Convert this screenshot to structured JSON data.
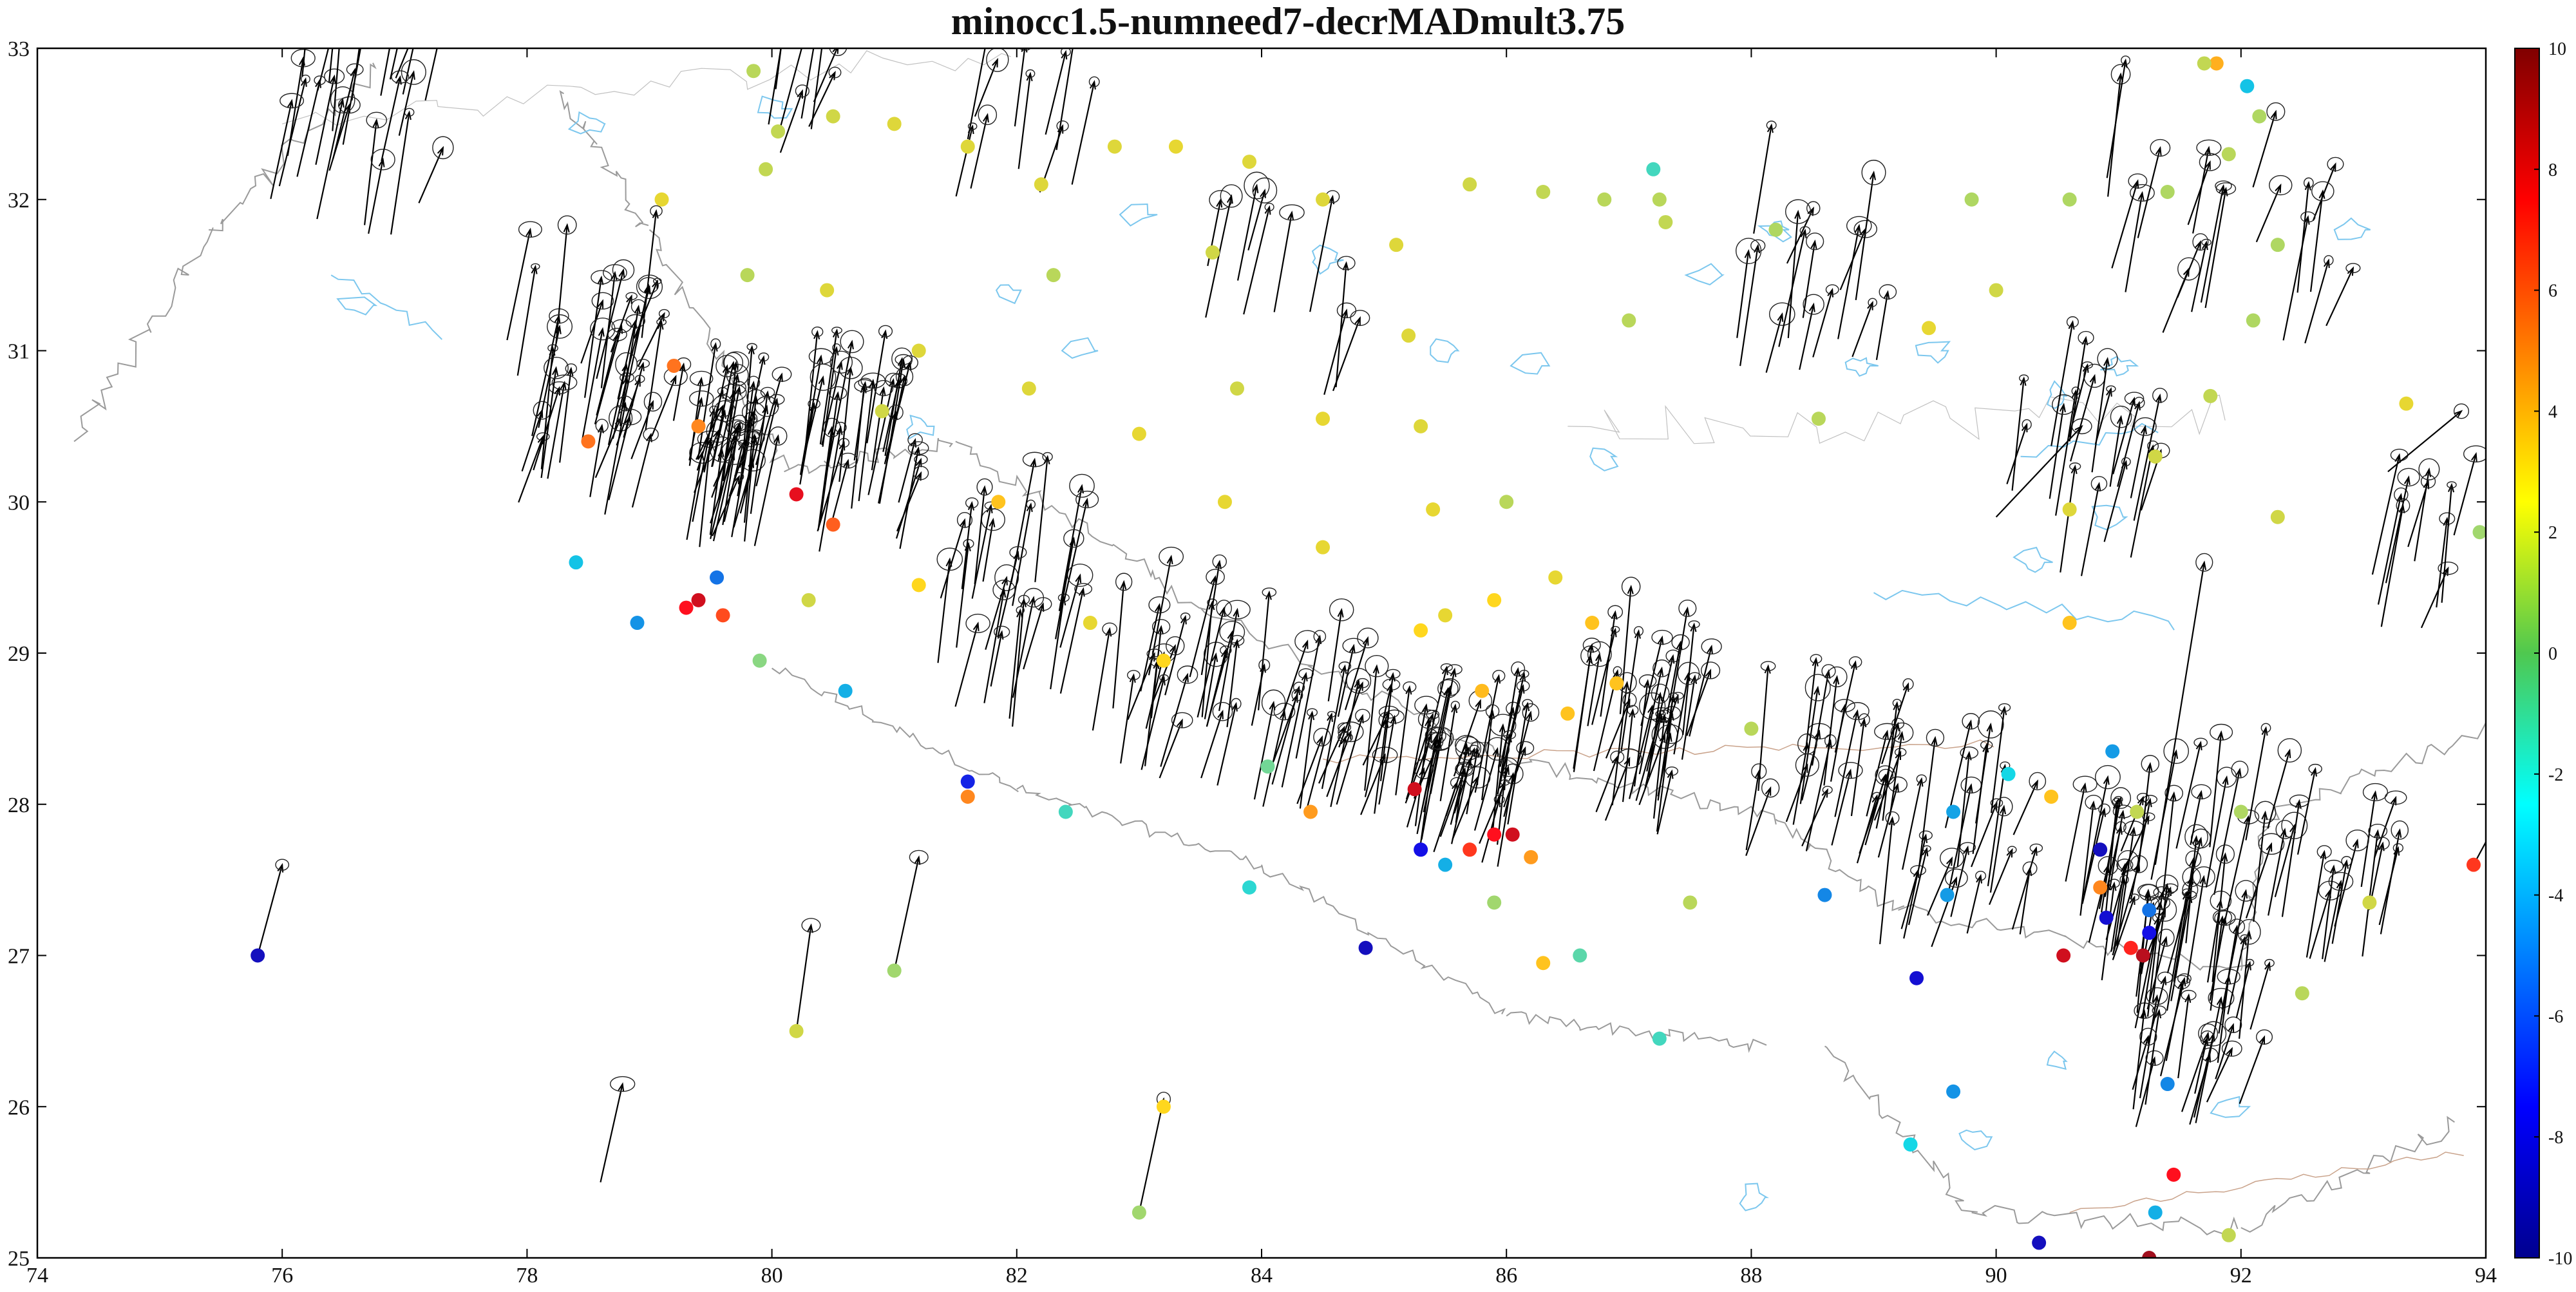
{
  "chart_data": {
    "type": "scatter",
    "title": "minocc1.5-numneed7-decrMADmult3.75",
    "xlabel": "",
    "ylabel": "",
    "xlim": [
      74,
      94
    ],
    "ylim": [
      25,
      33
    ],
    "xticks": [
      "74",
      "76",
      "78",
      "80",
      "82",
      "84",
      "86",
      "88",
      "90",
      "92",
      "94"
    ],
    "yticks": [
      "25",
      "26",
      "27",
      "28",
      "29",
      "30",
      "31",
      "32",
      "33"
    ],
    "colorbar": {
      "range": [
        -10,
        10
      ],
      "ticks": [
        "-10",
        "-8",
        "-6",
        "-4",
        "-2",
        "0",
        "2",
        "4",
        "6",
        "8",
        "10"
      ],
      "colormap": "jet",
      "placement": "right"
    },
    "grid": false,
    "colors": {
      "vector": "#000000",
      "river": "#7cc7ee",
      "border": "#9a9a9a",
      "road": "#c9a28a",
      "dense_line_points": "#c9dc3e"
    },
    "series": [
      {
        "points": [
          [
            75.8,
            27.0,
            -8.5
          ],
          [
            79.1,
            32.0,
            2.0
          ],
          [
            78.4,
            29.6,
            -3.0
          ],
          [
            78.9,
            29.2,
            -4.2
          ],
          [
            79.3,
            29.3,
            7.5
          ],
          [
            79.4,
            29.35,
            8.5
          ],
          [
            79.55,
            29.5,
            -5.0
          ],
          [
            79.6,
            29.25,
            6.0
          ],
          [
            80.2,
            30.05,
            8.0
          ],
          [
            79.8,
            31.5,
            1.0
          ],
          [
            80.6,
            28.75,
            -3.5
          ],
          [
            81.0,
            26.9,
            0.5
          ],
          [
            80.2,
            26.5,
            1.5
          ],
          [
            81.6,
            28.15,
            -7.0
          ],
          [
            81.6,
            28.05,
            4.5
          ],
          [
            82.4,
            27.95,
            -1.5
          ],
          [
            83.0,
            25.3,
            0.5
          ],
          [
            83.2,
            26.0,
            2.5
          ],
          [
            83.9,
            27.45,
            -2.0
          ],
          [
            84.4,
            27.95,
            4.0
          ],
          [
            84.85,
            27.05,
            -8.5
          ],
          [
            85.25,
            28.1,
            8.5
          ],
          [
            85.3,
            27.7,
            -7.5
          ],
          [
            85.5,
            27.6,
            -3.5
          ],
          [
            85.7,
            27.7,
            6.5
          ],
          [
            85.9,
            27.8,
            7.5
          ],
          [
            86.05,
            27.8,
            8.5
          ],
          [
            86.2,
            27.65,
            4.0
          ],
          [
            86.6,
            27.0,
            -1.0
          ],
          [
            87.25,
            26.45,
            -1.5
          ],
          [
            87.5,
            27.35,
            1.0
          ],
          [
            88.6,
            27.4,
            -4.5
          ],
          [
            89.35,
            26.85,
            -8.0
          ],
          [
            89.6,
            27.4,
            -4.0
          ],
          [
            89.65,
            27.95,
            -3.8
          ],
          [
            89.65,
            26.1,
            -4.2
          ],
          [
            89.3,
            25.75,
            -2.5
          ],
          [
            90.35,
            25.1,
            -8.5
          ],
          [
            90.55,
            27.0,
            8.5
          ],
          [
            90.85,
            27.7,
            -8.5
          ],
          [
            90.85,
            27.45,
            4.5
          ],
          [
            90.9,
            27.25,
            -8.0
          ],
          [
            91.1,
            27.05,
            7.0
          ],
          [
            91.2,
            27.0,
            9.0
          ],
          [
            91.25,
            27.3,
            -5.0
          ],
          [
            91.25,
            27.15,
            -7.5
          ],
          [
            91.4,
            26.15,
            -4.5
          ],
          [
            91.45,
            25.55,
            7.5
          ],
          [
            91.3,
            25.3,
            -3.5
          ],
          [
            91.25,
            25.0,
            9.5
          ],
          [
            93.9,
            27.6,
            6.5
          ],
          [
            91.9,
            25.15,
            1.2
          ],
          [
            88.0,
            28.5,
            1.0
          ],
          [
            87.25,
            32.0,
            1.0
          ],
          [
            87.0,
            31.2,
            1.0
          ],
          [
            86.0,
            30.0,
            1.0
          ],
          [
            85.5,
            29.25,
            2.0
          ],
          [
            84.5,
            30.55,
            2.0
          ],
          [
            83.8,
            30.75,
            1.5
          ],
          [
            83.6,
            31.65,
            1.5
          ],
          [
            82.3,
            31.5,
            1.0
          ],
          [
            81.85,
            30.0,
            3.0
          ],
          [
            80.9,
            30.6,
            1.5
          ],
          [
            80.3,
            29.35,
            1.5
          ],
          [
            79.9,
            28.95,
            0.0
          ],
          [
            78.5,
            30.4,
            5.0
          ],
          [
            79.2,
            30.9,
            5.0
          ],
          [
            79.4,
            30.5,
            4.5
          ],
          [
            80.5,
            29.85,
            5.5
          ],
          [
            81.2,
            29.45,
            2.5
          ],
          [
            82.6,
            29.2,
            2.0
          ],
          [
            83.2,
            28.95,
            2.5
          ],
          [
            84.05,
            28.25,
            -0.5
          ],
          [
            85.9,
            27.35,
            0.5
          ],
          [
            86.3,
            26.95,
            3.0
          ],
          [
            92.0,
            27.95,
            0.8
          ],
          [
            92.3,
            29.9,
            1.5
          ],
          [
            93.35,
            30.65,
            2.0
          ],
          [
            93.95,
            29.8,
            0.5
          ],
          [
            90.0,
            31.4,
            1.5
          ],
          [
            89.45,
            31.15,
            2.0
          ],
          [
            88.55,
            30.55,
            1.0
          ],
          [
            87.2,
            32.2,
            -1.5
          ],
          [
            91.8,
            32.9,
            3.5
          ],
          [
            92.05,
            32.75,
            -3.0
          ],
          [
            93.05,
            27.35,
            1.5
          ],
          [
            92.5,
            26.75,
            1.0
          ],
          [
            90.45,
            28.05,
            3.0
          ],
          [
            90.6,
            29.2,
            3.0
          ],
          [
            90.95,
            28.35,
            -4.0
          ],
          [
            90.1,
            28.2,
            -2.5
          ],
          [
            91.15,
            27.95,
            1.2
          ]
        ]
      },
      {
        "points": [
          [
            79.85,
            32.85,
            1.0
          ],
          [
            80.05,
            32.45,
            1.2
          ],
          [
            80.5,
            32.55,
            1.5
          ],
          [
            81.0,
            32.5,
            1.8
          ],
          [
            81.6,
            32.35,
            1.8
          ],
          [
            82.2,
            32.1,
            1.8
          ],
          [
            82.8,
            32.35,
            1.8
          ],
          [
            83.3,
            32.35,
            2.0
          ],
          [
            83.9,
            32.25,
            1.8
          ],
          [
            84.5,
            32.0,
            1.8
          ],
          [
            85.1,
            31.7,
            1.8
          ],
          [
            85.2,
            31.1,
            1.8
          ],
          [
            85.3,
            30.5,
            1.8
          ],
          [
            85.4,
            29.95,
            2.0
          ],
          [
            85.9,
            29.35,
            2.5
          ],
          [
            86.4,
            29.5,
            2.0
          ],
          [
            86.7,
            29.2,
            3.0
          ],
          [
            86.9,
            28.8,
            3.0
          ],
          [
            86.5,
            28.6,
            3.0
          ],
          [
            85.8,
            28.75,
            3.2
          ],
          [
            85.3,
            29.15,
            2.5
          ],
          [
            84.5,
            29.7,
            2.0
          ],
          [
            83.7,
            30.0,
            2.0
          ],
          [
            83.0,
            30.45,
            2.0
          ],
          [
            82.1,
            30.75,
            1.8
          ],
          [
            81.2,
            31.0,
            1.8
          ],
          [
            80.45,
            31.4,
            1.8
          ],
          [
            79.95,
            32.2,
            1.2
          ],
          [
            85.7,
            32.1,
            1.5
          ],
          [
            86.3,
            32.05,
            1.2
          ],
          [
            86.8,
            32.0,
            1.0
          ],
          [
            87.3,
            31.85,
            1.2
          ],
          [
            88.2,
            31.8,
            0.8
          ],
          [
            89.8,
            32.0,
            0.8
          ],
          [
            90.6,
            32.0,
            0.8
          ],
          [
            91.4,
            32.05,
            0.8
          ],
          [
            91.9,
            32.3,
            1.0
          ],
          [
            92.15,
            32.55,
            0.8
          ],
          [
            92.3,
            31.7,
            0.8
          ],
          [
            92.1,
            31.2,
            0.8
          ],
          [
            91.75,
            30.7,
            1.2
          ],
          [
            91.3,
            30.3,
            1.5
          ],
          [
            90.6,
            29.95,
            1.8
          ],
          [
            91.7,
            32.9,
            1.2
          ]
        ]
      }
    ]
  }
}
